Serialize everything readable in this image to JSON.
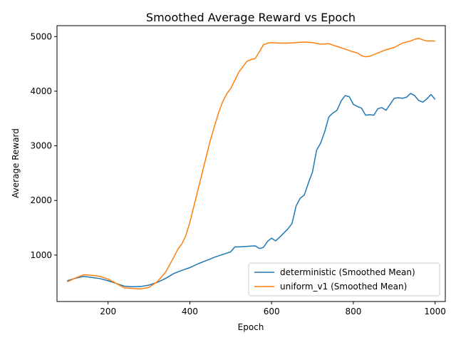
{
  "chart_data": {
    "type": "line",
    "title": "Smoothed Average Reward vs Epoch",
    "xlabel": "Epoch",
    "ylabel": "Average Reward",
    "xlim": [
      75,
      1025
    ],
    "ylim": [
      150,
      5200
    ],
    "xticks": [
      200,
      400,
      600,
      800,
      1000
    ],
    "yticks": [
      1000,
      2000,
      3000,
      4000,
      5000
    ],
    "grid": false,
    "legend_loc": "lower right",
    "series": [
      {
        "name": "deterministic (Smoothed Mean)",
        "color": "#1f77b4",
        "x": [
          100,
          120,
          140,
          160,
          180,
          200,
          220,
          240,
          260,
          280,
          300,
          320,
          340,
          360,
          380,
          400,
          420,
          440,
          460,
          480,
          500,
          510,
          520,
          540,
          560,
          570,
          580,
          590,
          600,
          610,
          620,
          640,
          650,
          660,
          670,
          680,
          690,
          700,
          710,
          720,
          730,
          740,
          750,
          760,
          770,
          780,
          790,
          800,
          810,
          820,
          830,
          840,
          850,
          860,
          870,
          880,
          890,
          900,
          910,
          920,
          930,
          940,
          950,
          960,
          970,
          980,
          990,
          1000
        ],
        "y": [
          530,
          575,
          610,
          590,
          570,
          530,
          480,
          430,
          420,
          425,
          450,
          500,
          570,
          660,
          720,
          770,
          840,
          900,
          960,
          1010,
          1060,
          1150,
          1150,
          1160,
          1170,
          1120,
          1140,
          1250,
          1310,
          1260,
          1330,
          1480,
          1580,
          1900,
          2040,
          2100,
          2320,
          2520,
          2920,
          3050,
          3260,
          3530,
          3600,
          3650,
          3820,
          3920,
          3900,
          3760,
          3720,
          3690,
          3560,
          3570,
          3560,
          3680,
          3700,
          3650,
          3760,
          3870,
          3880,
          3870,
          3890,
          3960,
          3920,
          3830,
          3800,
          3860,
          3940,
          3850
        ]
      },
      {
        "name": "uniform_v1 (Smoothed Mean)",
        "color": "#ff7f0e",
        "x": [
          100,
          120,
          140,
          160,
          180,
          200,
          220,
          240,
          260,
          280,
          300,
          320,
          340,
          360,
          370,
          380,
          390,
          400,
          410,
          420,
          430,
          440,
          450,
          460,
          470,
          480,
          490,
          500,
          510,
          520,
          530,
          540,
          550,
          560,
          570,
          580,
          590,
          600,
          620,
          640,
          660,
          680,
          700,
          720,
          740,
          760,
          780,
          800,
          810,
          820,
          830,
          840,
          860,
          880,
          900,
          920,
          940,
          950,
          960,
          970,
          980,
          1000
        ],
        "y": [
          510,
          580,
          640,
          630,
          610,
          560,
          480,
          400,
          390,
          380,
          410,
          510,
          680,
          950,
          1100,
          1200,
          1350,
          1600,
          1900,
          2200,
          2500,
          2800,
          3100,
          3350,
          3600,
          3800,
          3950,
          4050,
          4200,
          4350,
          4450,
          4550,
          4580,
          4600,
          4720,
          4850,
          4880,
          4890,
          4880,
          4880,
          4890,
          4900,
          4890,
          4860,
          4870,
          4820,
          4770,
          4720,
          4700,
          4650,
          4630,
          4640,
          4700,
          4760,
          4800,
          4880,
          4920,
          4950,
          4970,
          4940,
          4920,
          4920
        ]
      }
    ]
  }
}
